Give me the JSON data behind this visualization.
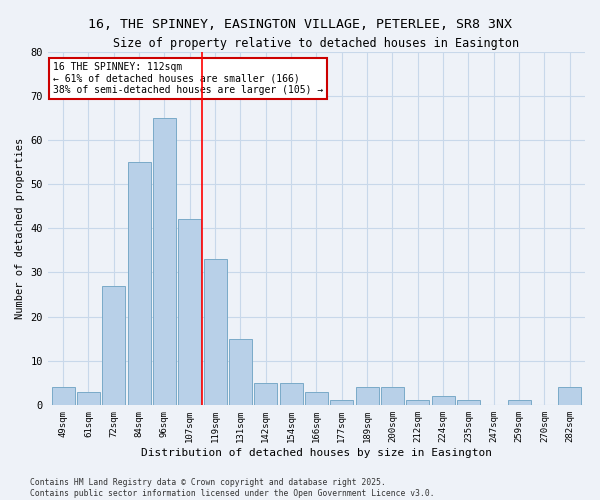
{
  "title_line1": "16, THE SPINNEY, EASINGTON VILLAGE, PETERLEE, SR8 3NX",
  "title_line2": "Size of property relative to detached houses in Easington",
  "xlabel": "Distribution of detached houses by size in Easington",
  "ylabel": "Number of detached properties",
  "categories": [
    "49sqm",
    "61sqm",
    "72sqm",
    "84sqm",
    "96sqm",
    "107sqm",
    "119sqm",
    "131sqm",
    "142sqm",
    "154sqm",
    "166sqm",
    "177sqm",
    "189sqm",
    "200sqm",
    "212sqm",
    "224sqm",
    "235sqm",
    "247sqm",
    "259sqm",
    "270sqm",
    "282sqm"
  ],
  "values": [
    4,
    3,
    27,
    55,
    65,
    42,
    33,
    15,
    5,
    5,
    3,
    1,
    4,
    4,
    1,
    2,
    1,
    0,
    1,
    0,
    4
  ],
  "bar_color": "#b8d0e8",
  "bar_edge_color": "#7aaac8",
  "grid_color": "#c8d8ea",
  "background_color": "#eef2f8",
  "annotation_text": "16 THE SPINNEY: 112sqm\n← 61% of detached houses are smaller (166)\n38% of semi-detached houses are larger (105) →",
  "vline_position": 5.5,
  "annotation_box_color": "#ffffff",
  "annotation_border_color": "#cc0000",
  "footer_text": "Contains HM Land Registry data © Crown copyright and database right 2025.\nContains public sector information licensed under the Open Government Licence v3.0.",
  "ylim": [
    0,
    80
  ],
  "yticks": [
    0,
    10,
    20,
    30,
    40,
    50,
    60,
    70,
    80
  ]
}
